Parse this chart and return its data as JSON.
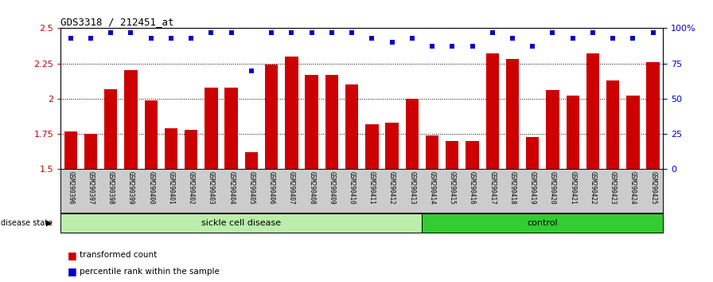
{
  "title": "GDS3318 / 212451_at",
  "categories": [
    "GSM290396",
    "GSM290397",
    "GSM290398",
    "GSM290399",
    "GSM290400",
    "GSM290401",
    "GSM290402",
    "GSM290403",
    "GSM290404",
    "GSM290405",
    "GSM290406",
    "GSM290407",
    "GSM290408",
    "GSM290409",
    "GSM290410",
    "GSM290411",
    "GSM290412",
    "GSM290413",
    "GSM290414",
    "GSM290415",
    "GSM290416",
    "GSM290417",
    "GSM290418",
    "GSM290419",
    "GSM290420",
    "GSM290421",
    "GSM290422",
    "GSM290423",
    "GSM290424",
    "GSM290425"
  ],
  "bar_values": [
    1.77,
    1.75,
    2.07,
    2.2,
    1.99,
    1.79,
    1.78,
    2.08,
    2.08,
    1.62,
    2.24,
    2.3,
    2.17,
    2.17,
    2.1,
    1.82,
    1.83,
    2.0,
    1.74,
    1.7,
    1.7,
    2.32,
    2.28,
    1.73,
    2.06,
    2.02,
    2.32,
    2.13,
    2.02,
    2.26
  ],
  "percentile_values": [
    93,
    93,
    97,
    97,
    93,
    93,
    93,
    97,
    97,
    70,
    97,
    97,
    97,
    97,
    97,
    93,
    90,
    93,
    87,
    87,
    87,
    97,
    93,
    87,
    97,
    93,
    97,
    93,
    93,
    97
  ],
  "sickle_cell_count": 18,
  "control_count": 12,
  "ylim": [
    1.5,
    2.5
  ],
  "yticks": [
    1.5,
    1.75,
    2.0,
    2.25,
    2.5
  ],
  "ytick_labels": [
    "1.5",
    "1.75",
    "2",
    "2.25",
    "2.5"
  ],
  "right_yticks": [
    0,
    25,
    50,
    75,
    100
  ],
  "right_ytick_labels": [
    "0",
    "25",
    "50",
    "75",
    "100%"
  ],
  "bar_color": "#cc0000",
  "dot_color": "#0000cc",
  "sickle_color": "#bbeeaa",
  "control_color": "#33cc33",
  "grid_color": "#000000",
  "left_tick_color": "#cc0000",
  "right_tick_color": "#0000cc",
  "xlabel_area_color": "#cccccc"
}
